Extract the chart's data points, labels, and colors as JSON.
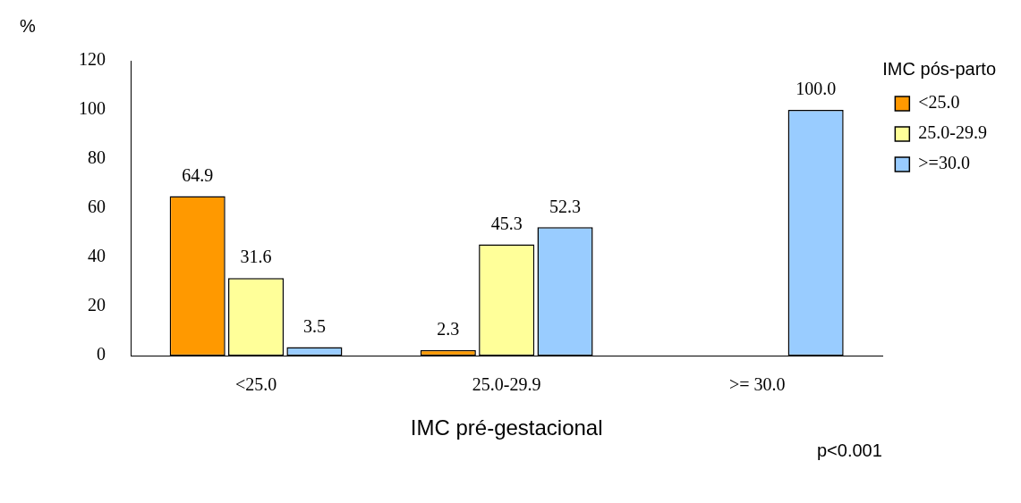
{
  "chart_data": {
    "type": "bar",
    "ylabel": "%",
    "xlabel": "IMC pré-gestacional",
    "legend_title": "IMC pós-parto",
    "legend": "top right",
    "grid": false,
    "categories": [
      "<25.0",
      "25.0-29.9",
      ">= 30.0"
    ],
    "ylim": [
      0,
      120
    ],
    "yticks": [
      0,
      20,
      40,
      60,
      80,
      100,
      120
    ],
    "series": [
      {
        "name": "<25.0",
        "color": "#ff9900",
        "values": [
          64.9,
          2.3,
          null
        ],
        "value_labels": [
          "64.9",
          "2.3",
          null
        ]
      },
      {
        "name": "25.0-29.9",
        "color": "#ffff99",
        "values": [
          31.6,
          45.3,
          null
        ],
        "value_labels": [
          "31.6",
          "45.3",
          null
        ]
      },
      {
        "name": ">=30.0",
        "color": "#99ccff",
        "values": [
          3.5,
          52.3,
          100.0
        ],
        "value_labels": [
          "3.5",
          "52.3",
          "100.0"
        ]
      }
    ],
    "annotations": [
      "p<0.001"
    ]
  }
}
